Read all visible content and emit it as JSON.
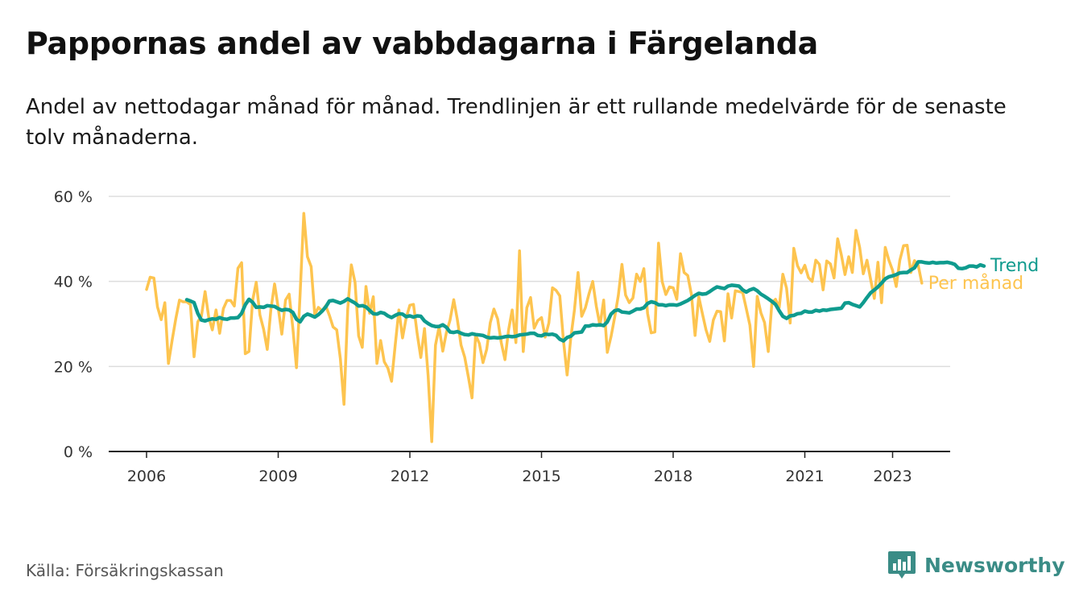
{
  "header": {
    "title": "Pappornas andel av vabbdagarna i Färgelanda",
    "subtitle": "Andel av nettodagar månad för månad. Trendlinjen är ett rullande medelvärde för de senaste tolv månaderna."
  },
  "footer": {
    "source": "Källa: Försäkringskassan",
    "brand": "Newsworthy",
    "brand_icon": "newsworthy-logo-icon"
  },
  "colors": {
    "trend": "#0f9b8e",
    "monthly": "#fdc44f",
    "grid": "#dddddd",
    "axis": "#222222",
    "brand": "#3a8c86"
  },
  "chart_data": {
    "type": "line",
    "x_unit": "year (decimal, monthly)",
    "xlim": [
      2005.75,
      2024.0
    ],
    "ylim": [
      0,
      60
    ],
    "y_ticks": [
      0,
      20,
      40,
      60
    ],
    "y_tick_labels": [
      "0 %",
      "20 %",
      "40 %",
      "60 %"
    ],
    "x_ticks": [
      2006,
      2009,
      2012,
      2015,
      2018,
      2021,
      2023
    ],
    "x_tick_labels": [
      "2006",
      "2009",
      "2012",
      "2015",
      "2018",
      "2021",
      "2023"
    ],
    "grid": "horizontal",
    "legend": "direct labels at right end of lines",
    "series": [
      {
        "name": "Trend",
        "color": "#0f9b8e",
        "x_start": 2006.9167,
        "x_step": 0.08333,
        "values": [
          35.7,
          35.4,
          35.0,
          32.5,
          30.9,
          30.7,
          31.0,
          31.2,
          31.1,
          31.5,
          31.2,
          31.1,
          31.4,
          31.4,
          31.5,
          32.5,
          34.5,
          35.8,
          35.1,
          33.9,
          34.0,
          33.9,
          34.3,
          34.2,
          34.1,
          33.6,
          33.2,
          33.4,
          33.3,
          32.7,
          31.1,
          30.5,
          31.8,
          32.3,
          32.0,
          31.6,
          32.2,
          33.0,
          34.0,
          35.4,
          35.5,
          35.2,
          34.9,
          35.3,
          35.9,
          35.4,
          34.9,
          34.2,
          34.3,
          34.0,
          33.2,
          32.4,
          32.3,
          32.7,
          32.5,
          31.9,
          31.5,
          32.0,
          32.4,
          32.3,
          31.7,
          31.9,
          31.6,
          31.9,
          31.8,
          30.7,
          30.1,
          29.6,
          29.4,
          29.4,
          29.8,
          29.2,
          28.1,
          28.0,
          28.2,
          27.8,
          27.5,
          27.4,
          27.7,
          27.5,
          27.4,
          27.3,
          26.9,
          26.7,
          26.8,
          26.7,
          26.8,
          27.0,
          27.1,
          27.0,
          27.1,
          27.4,
          27.5,
          27.6,
          27.8,
          27.8,
          27.3,
          27.2,
          27.6,
          27.5,
          27.6,
          27.3,
          26.4,
          26.0,
          26.8,
          27.1,
          27.9,
          28.0,
          28.1,
          29.5,
          29.5,
          29.8,
          29.7,
          29.8,
          29.6,
          30.5,
          32.3,
          33.1,
          33.3,
          32.8,
          32.7,
          32.6,
          33.0,
          33.5,
          33.5,
          33.8,
          34.8,
          35.2,
          35.0,
          34.5,
          34.5,
          34.3,
          34.5,
          34.5,
          34.4,
          34.7,
          35.1,
          35.5,
          36.1,
          36.7,
          37.2,
          37.0,
          37.1,
          37.6,
          38.2,
          38.7,
          38.5,
          38.3,
          38.9,
          39.1,
          39.0,
          38.9,
          38.0,
          37.5,
          38.0,
          38.3,
          37.8,
          37.0,
          36.5,
          35.9,
          35.3,
          34.6,
          33.1,
          31.8,
          31.3,
          31.9,
          32.0,
          32.4,
          32.5,
          33.0,
          32.8,
          32.8,
          33.2,
          33.0,
          33.3,
          33.2,
          33.4,
          33.5,
          33.6,
          33.7,
          34.9,
          35.0,
          34.6,
          34.3,
          34.0,
          35.0,
          36.2,
          37.3,
          38.0,
          38.7,
          39.6,
          40.6,
          41.1,
          41.3,
          41.6,
          42.0,
          42.1,
          42.1,
          42.7,
          43.2,
          44.6,
          44.6,
          44.4,
          44.3,
          44.5,
          44.3,
          44.4,
          44.4,
          44.5,
          44.3,
          44.0,
          43.1,
          43.0,
          43.2,
          43.6,
          43.6,
          43.4,
          43.9,
          43.6
        ]
      },
      {
        "name": "Per månad",
        "color": "#fdc44f",
        "x_start": 2006.0,
        "x_step": 0.08333,
        "values": [
          38.1,
          41.0,
          40.8,
          34.0,
          31.0,
          35.0,
          20.7,
          26.2,
          31.2,
          35.6,
          35.2,
          35.2,
          34.5,
          22.3,
          30.5,
          31.8,
          37.6,
          31.6,
          28.6,
          33.3,
          27.8,
          33.6,
          35.5,
          35.5,
          34.2,
          43.1,
          44.4,
          23.0,
          23.5,
          35.5,
          39.8,
          32.1,
          28.8,
          24.0,
          33.4,
          39.4,
          33.8,
          27.6,
          35.6,
          37.0,
          29.0,
          19.7,
          37.0,
          56.0,
          45.8,
          43.5,
          32.2,
          33.9,
          33.0,
          34.3,
          32.0,
          29.3,
          28.6,
          21.8,
          11.1,
          33.4,
          43.9,
          39.8,
          27.2,
          24.5,
          38.8,
          32.5,
          36.4,
          20.7,
          26.1,
          21.1,
          19.6,
          16.5,
          25.0,
          33.3,
          26.7,
          31.4,
          34.4,
          34.6,
          27.7,
          22.1,
          28.9,
          17.8,
          2.3,
          25.0,
          29.3,
          23.6,
          28.0,
          30.9,
          35.7,
          31.0,
          25.0,
          22.2,
          17.5,
          12.6,
          27.4,
          25.4,
          20.9,
          24.0,
          30.3,
          33.5,
          31.2,
          25.6,
          21.6,
          28.6,
          33.3,
          25.6,
          47.2,
          23.5,
          33.8,
          36.2,
          29.0,
          30.8,
          31.5,
          26.9,
          30.2,
          38.5,
          37.9,
          36.6,
          26.2,
          18.0,
          26.6,
          33.3,
          42.1,
          31.8,
          33.8,
          37.1,
          40.0,
          34.1,
          29.6,
          35.6,
          23.3,
          27.0,
          31.5,
          36.7,
          44.0,
          36.8,
          35.0,
          36.1,
          41.7,
          40.0,
          43.0,
          32.5,
          27.9,
          28.1,
          49.0,
          40.0,
          36.9,
          38.7,
          38.5,
          35.8,
          46.5,
          42.1,
          41.4,
          36.9,
          27.3,
          36.4,
          32.4,
          28.6,
          25.9,
          30.9,
          33.0,
          32.9,
          26.0,
          37.1,
          31.4,
          37.8,
          37.6,
          37.4,
          33.6,
          29.7,
          20.0,
          36.5,
          32.6,
          30.3,
          23.5,
          35.0,
          35.8,
          33.9,
          41.7,
          38.4,
          30.2,
          47.8,
          43.7,
          42.0,
          43.8,
          40.9,
          40.0,
          45.0,
          44.0,
          38.0,
          44.8,
          44.1,
          40.8,
          50.0,
          46.2,
          41.6,
          45.8,
          42.1,
          52.0,
          48.0,
          41.8,
          45.0,
          40.5,
          36.0,
          44.5,
          35.0,
          48.0,
          45.0,
          42.6,
          38.8,
          45.0,
          48.4,
          48.5,
          42.1,
          44.9,
          43.8,
          39.6
        ]
      }
    ]
  }
}
